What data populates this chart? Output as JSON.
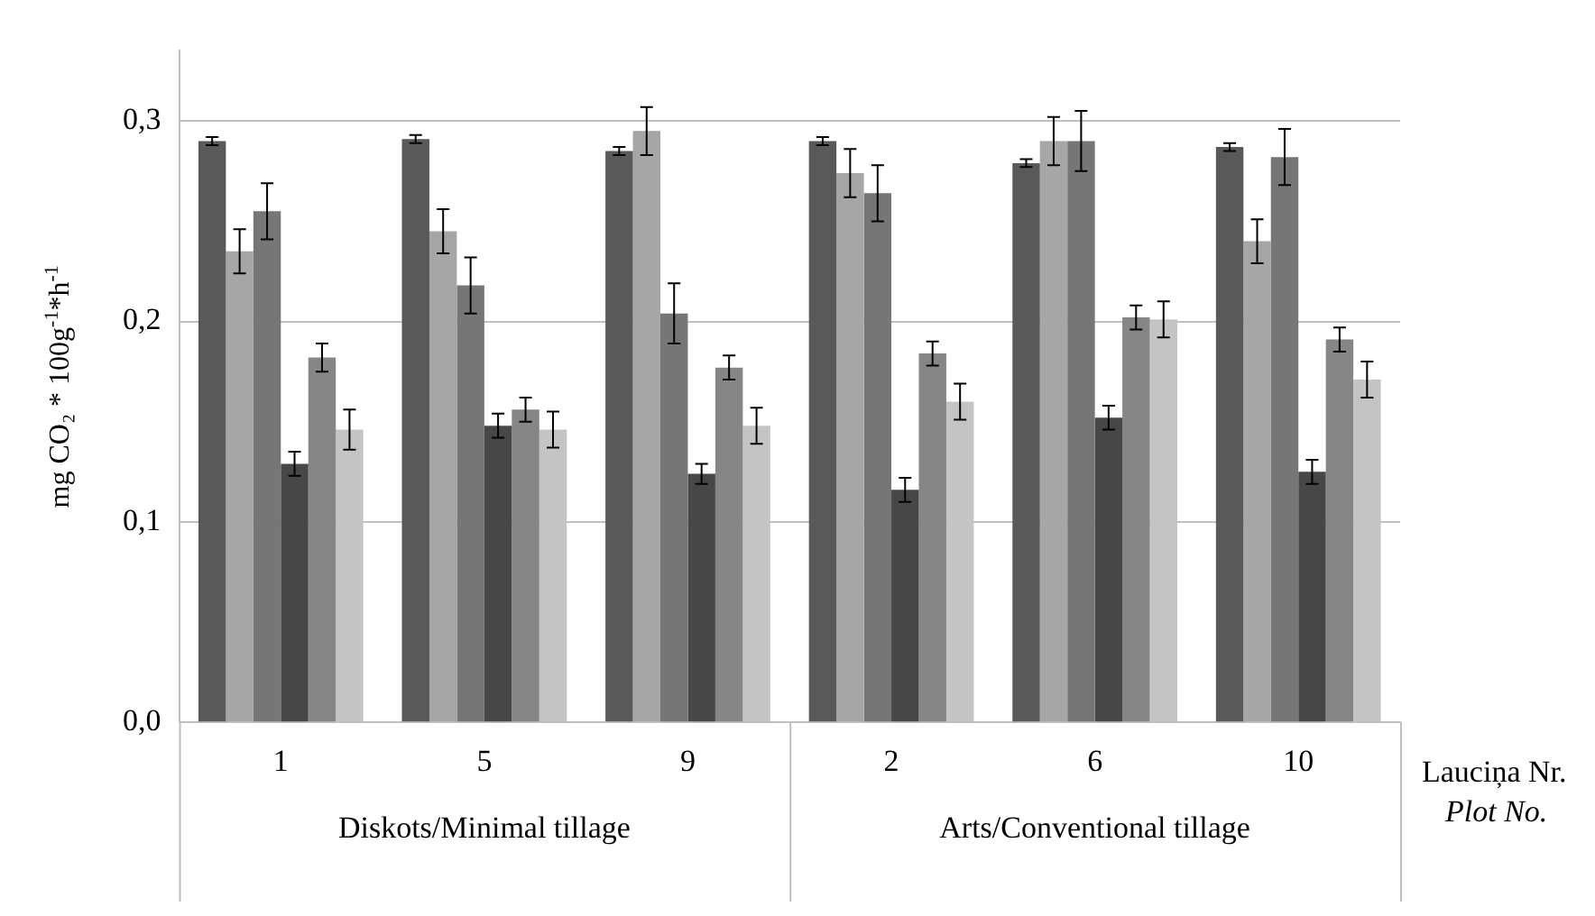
{
  "chart_data": {
    "type": "bar",
    "ylabel": "mg CO₂ * 100g$^{-1}$*h$^{-1}$",
    "xlabel": "Lauciņa Nr.",
    "annotations": [
      "Diskots/Minimal tillage",
      "Arts/Conventional tillage",
      "Plot No."
    ],
    "categories": [
      "1",
      "5",
      "9",
      "2",
      "6",
      "10"
    ],
    "series": [
      {
        "color": "#595959",
        "values": [
          0.29,
          0.291,
          0.285,
          0.29,
          0.279,
          0.287
        ],
        "errors": [
          0.002,
          0.002,
          0.002,
          0.002,
          0.002,
          0.002
        ]
      },
      {
        "color": "#a6a6a6",
        "values": [
          0.235,
          0.245,
          0.295,
          0.274,
          0.29,
          0.24
        ],
        "errors": [
          0.011,
          0.011,
          0.012,
          0.012,
          0.012,
          0.011
        ]
      },
      {
        "color": "#767676",
        "values": [
          0.255,
          0.218,
          0.204,
          0.264,
          0.29,
          0.282
        ],
        "errors": [
          0.014,
          0.014,
          0.015,
          0.014,
          0.015,
          0.014
        ]
      },
      {
        "color": "#474747",
        "values": [
          0.129,
          0.148,
          0.124,
          0.116,
          0.152,
          0.125
        ],
        "errors": [
          0.006,
          0.006,
          0.005,
          0.006,
          0.006,
          0.006
        ]
      },
      {
        "color": "#868686",
        "values": [
          0.182,
          0.156,
          0.177,
          0.184,
          0.202,
          0.191
        ],
        "errors": [
          0.007,
          0.006,
          0.006,
          0.006,
          0.006,
          0.006
        ]
      },
      {
        "color": "#c4c4c4",
        "values": [
          0.146,
          0.146,
          0.148,
          0.16,
          0.201,
          0.171
        ],
        "errors": [
          0.01,
          0.009,
          0.009,
          0.009,
          0.009,
          0.009
        ]
      }
    ],
    "ylim": [
      0,
      0.335
    ],
    "yticks": [
      {
        "value": 0,
        "label": "0,0"
      },
      {
        "value": 0.1,
        "label": "0,1"
      },
      {
        "value": 0.2,
        "label": "0,2"
      },
      {
        "value": 0.3,
        "label": "0,3"
      }
    ],
    "grid": "y",
    "legend": false
  }
}
